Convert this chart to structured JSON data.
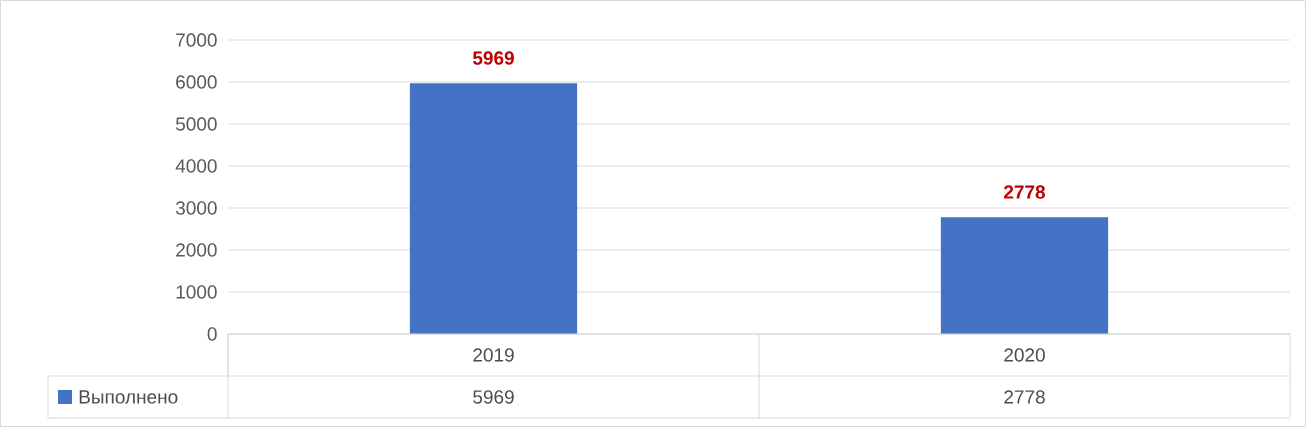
{
  "chart_data": {
    "type": "bar",
    "categories": [
      "2019",
      "2020"
    ],
    "series": [
      {
        "name": "Выполнено",
        "color": "#4472c4",
        "values": [
          5969,
          2778
        ],
        "value_labels": [
          "5969",
          "2778"
        ]
      }
    ],
    "ylim": [
      0,
      7000
    ],
    "yticks": [
      0,
      1000,
      2000,
      3000,
      4000,
      5000,
      6000,
      7000
    ],
    "grid": "y",
    "data_labels": true,
    "legend": "bottom"
  }
}
